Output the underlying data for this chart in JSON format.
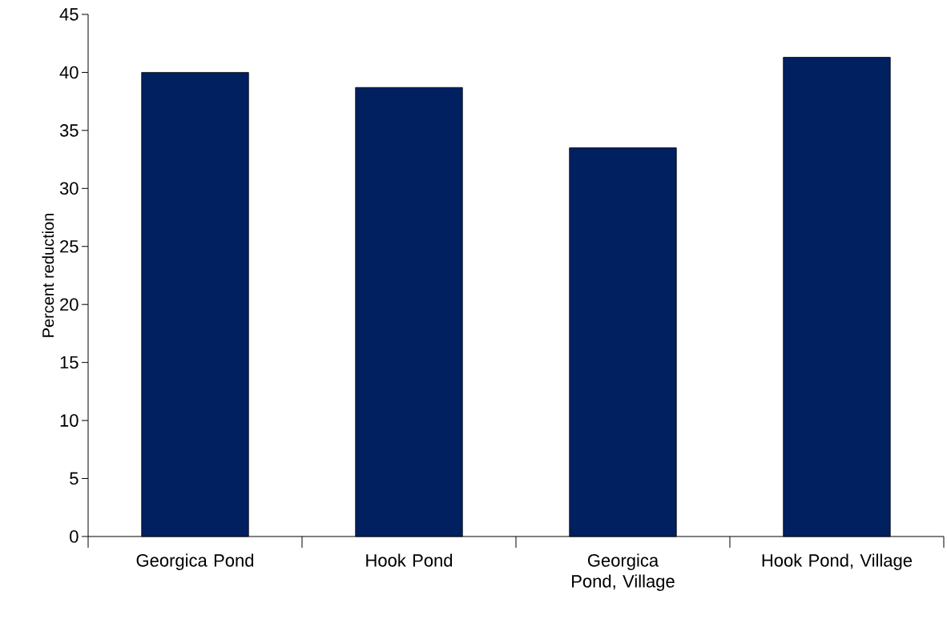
{
  "chart_data": {
    "type": "bar",
    "ylabel": "Percent reduction",
    "categories": [
      "Georgica Pond",
      "Hook Pond",
      "Georgica Pond, Village",
      "Hook Pond, Village"
    ],
    "values": [
      40.0,
      38.7,
      33.5,
      41.3
    ],
    "color": "#002060",
    "ylim": [
      0,
      45
    ],
    "yticks": [
      0,
      5,
      10,
      15,
      20,
      25,
      30,
      35,
      40,
      45
    ]
  }
}
